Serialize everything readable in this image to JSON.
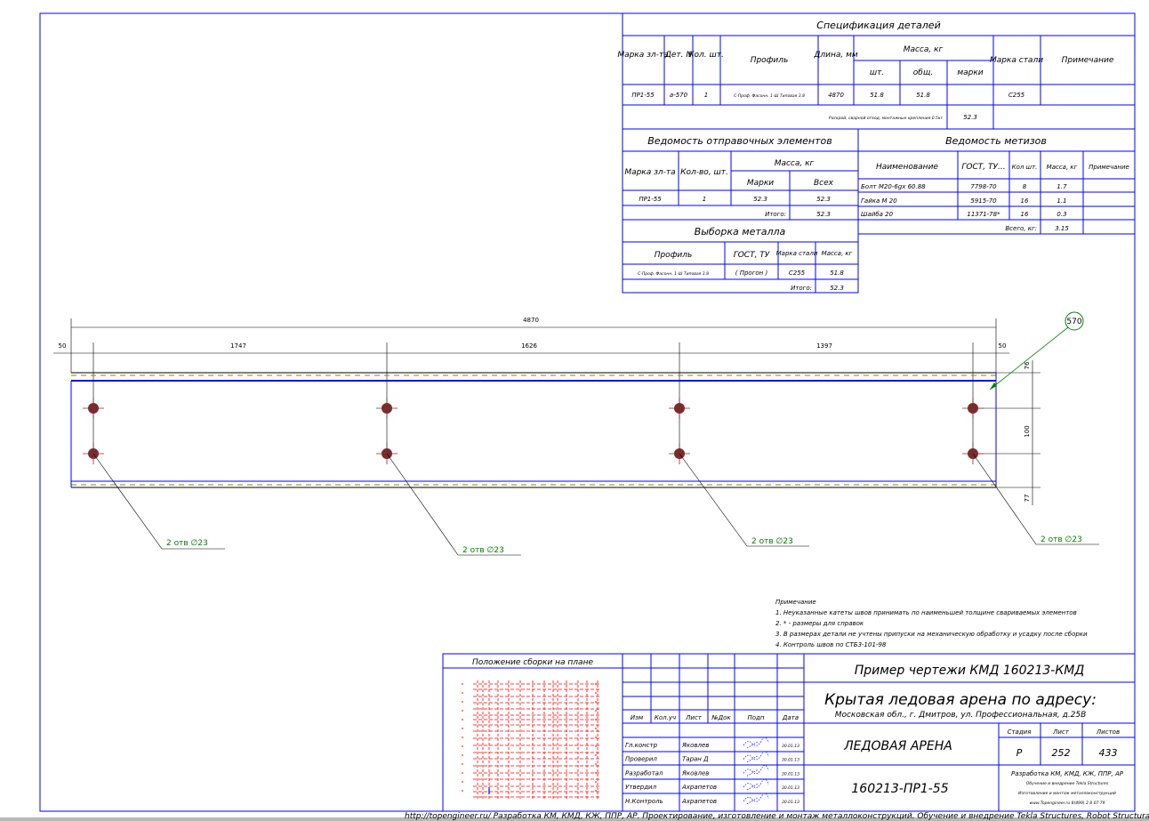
{
  "colors": {
    "frame": "#0000ff",
    "dimension": "#000000",
    "leader_label": "#008000",
    "hole": "#7a2c2c",
    "plan_grid": "#ff0000",
    "dashed_edge": "#8a8a00"
  },
  "spec": {
    "title": "Спецификация деталей",
    "headers": {
      "mark": "Марка зл-та",
      "det": "Дет. N",
      "qty": "Кол. шт.",
      "profile": "Профиль",
      "length": "Длина, мм",
      "mass": "Масса, кг",
      "mass_unit": "шт.",
      "mass_total": "общ.",
      "mass_mark": "марки",
      "steel": "Марка стали",
      "note": "Примечание"
    },
    "row": {
      "mark": "ПР1-55",
      "det": "а-570",
      "qty": "1",
      "profile": "С-Проф. Фасонн. 1-Ш Типовая 3.8",
      "length": "4870",
      "mass_unit": "51.8",
      "mass_total": "51.8",
      "mass_mark": "",
      "steel": "С255",
      "note": ""
    },
    "extra_label": "Раскрой, сварной отход, монтажные крепления 0.5кг",
    "extra_value": "52.3"
  },
  "shipping": {
    "title": "Ведомость отправочных элементов",
    "headers": {
      "mark": "Марка зл-та",
      "qty": "Кол-во, шт.",
      "mass": "Масса, кг",
      "mass_mark": "Марки",
      "mass_all": "Всех"
    },
    "row": {
      "mark": "ПР1-55",
      "qty": "1",
      "mass_mark": "52.3",
      "mass_all": "52.3"
    },
    "total_label": "Итого:",
    "total_value": "52.3"
  },
  "fasteners": {
    "title": "Ведомость метизов",
    "headers": {
      "name": "Наименование",
      "gost": "ГОСТ, ТУ...",
      "qty": "Кол шт.",
      "mass": "Масса, кг",
      "note": "Примечание"
    },
    "rows": [
      {
        "name": "Болт М20-6gх 60.88",
        "gost": "7798-70",
        "qty": "8",
        "mass": "1.7"
      },
      {
        "name": "Гайка М 20",
        "gost": "5915-70",
        "qty": "16",
        "mass": "1.1"
      },
      {
        "name": "Шайба 20",
        "gost": "11371-78*",
        "qty": "16",
        "mass": "0.3"
      }
    ],
    "total_label": "Всего, кг:",
    "total_value": "3.15"
  },
  "metal": {
    "title": "Выборка металла",
    "headers": {
      "profile": "Профиль",
      "gost": "ГОСТ, ТУ",
      "steel": "Марка стали",
      "mass": "Масса, кг"
    },
    "row": {
      "profile": "С-Проф. Фасонн. 1-Ш Типовая 3.8",
      "gost": "( Прогон )",
      "steel": "С255",
      "mass": "51.8"
    },
    "total_label": "Итого:",
    "total_value": "52.3"
  },
  "drawing": {
    "overall_dim": "4870",
    "dims": [
      "50",
      "1747",
      "1626",
      "1397",
      "50"
    ],
    "vertical_dims": [
      "76",
      "100",
      "77"
    ],
    "part_balloon": "570",
    "hole_labels": [
      "2 отв ∅23",
      "2 отв ∅23",
      "2 отв ∅23",
      "2 отв ∅23"
    ]
  },
  "notes": {
    "title": "Примечание",
    "items": [
      "1. Неуказанные катеты швов принимать по наименьшей толщине свариваемых элементов",
      "2. * - размеры для справок",
      "3. В размерах детали не учтены припуски на механическую обработку и усадку после сборки",
      "4. Контроль швов по СТБ3-101-98"
    ]
  },
  "title_block": {
    "plan_title": "Положение сборки на плане",
    "rev_headers": [
      "Изм",
      "Кол.уч",
      "Лист",
      "№Док",
      "Подп",
      "Дата"
    ],
    "people": [
      {
        "role": "Гл.констр",
        "name": "Яковлев",
        "date": "30.01.13"
      },
      {
        "role": "Проверил",
        "name": "Таран Д",
        "date": "30.01.13"
      },
      {
        "role": "Разработал",
        "name": "Яковлев",
        "date": "30.01.13"
      },
      {
        "role": "Утвердил",
        "name": "Ахрапетов",
        "date": "30.01.13"
      },
      {
        "role": "Н.Контроль",
        "name": "Ахрапетов",
        "date": "30.01.13"
      }
    ],
    "project": "Пример чертежи КМД  160213-КМД",
    "object": "Крытая ледовая арена по адресу:",
    "address": "Московская обл., г. Дмитров, ул. Профессиональная, д.25В",
    "sheet_name": "ЛЕДОВАЯ АРЕНА",
    "drawing_code": "160213-ПР1-55",
    "stage_label": "Стадия",
    "sheet_label": "Лист",
    "sheets_label": "Листов",
    "stage": "Р",
    "sheet": "252",
    "sheets": "433",
    "company": [
      "Разработка КМ, КМД, КЖ, ППР, АР",
      "Обучение и внедрение Tekla Structures",
      "Изготовление и монтаж металлоконструкций",
      "www.Topengineer.ru        8(499) 2 8 07 79"
    ]
  },
  "footer": "http://topengineer.ru/  Разработка КМ, КМД, КЖ, ППР, АР. Проектирование, изготовление и монтаж металлоконструкций. Обучение и внедрение Tekla Structures, Robot Structural Analysis."
}
